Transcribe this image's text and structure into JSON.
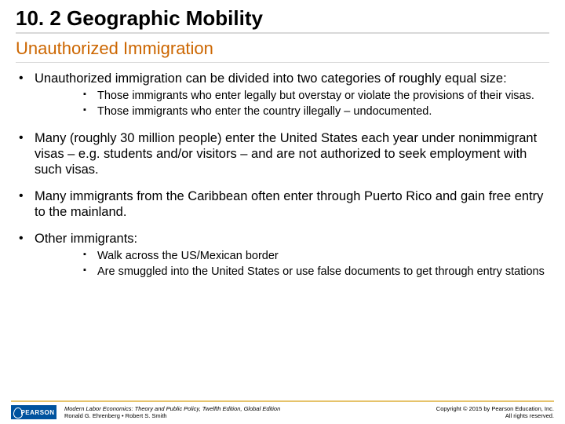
{
  "title": "10. 2  Geographic Mobility",
  "subtitle": "Unauthorized Immigration",
  "colors": {
    "subtitle": "#cc6600",
    "title_rule": "#d9d9d9",
    "footer_rule": "#e6c36b",
    "logo_bg": "#00539f",
    "text": "#000000",
    "background": "#ffffff"
  },
  "bullets": [
    {
      "text": "Unauthorized immigration can be divided into two categories of roughly equal size:",
      "sub": [
        "Those immigrants who enter legally but overstay or violate the provisions of their visas.",
        "Those immigrants who enter the country illegally – undocumented."
      ]
    },
    {
      "text": "Many (roughly 30 million people) enter the United States each year under nonimmigrant visas – e.g. students and/or visitors – and are not authorized to seek employment with such visas.",
      "sub": []
    },
    {
      "text": "Many immigrants from the Caribbean often enter through Puerto Rico and gain free entry to the mainland.",
      "sub": []
    },
    {
      "text": "Other immigrants:",
      "sub": [
        "Walk across the US/Mexican border",
        "Are smuggled into the United States or use false documents to get through entry stations"
      ]
    }
  ],
  "footer": {
    "logo_text": "PEARSON",
    "book_title": "Modern Labor Economics: Theory and Public Policy, Twelfth Edition, Global Edition",
    "authors": "Ronald G. Ehrenberg • Robert S. Smith",
    "copyright_line1": "Copyright © 2015 by Pearson Education, Inc.",
    "copyright_line2": "All rights reserved."
  }
}
